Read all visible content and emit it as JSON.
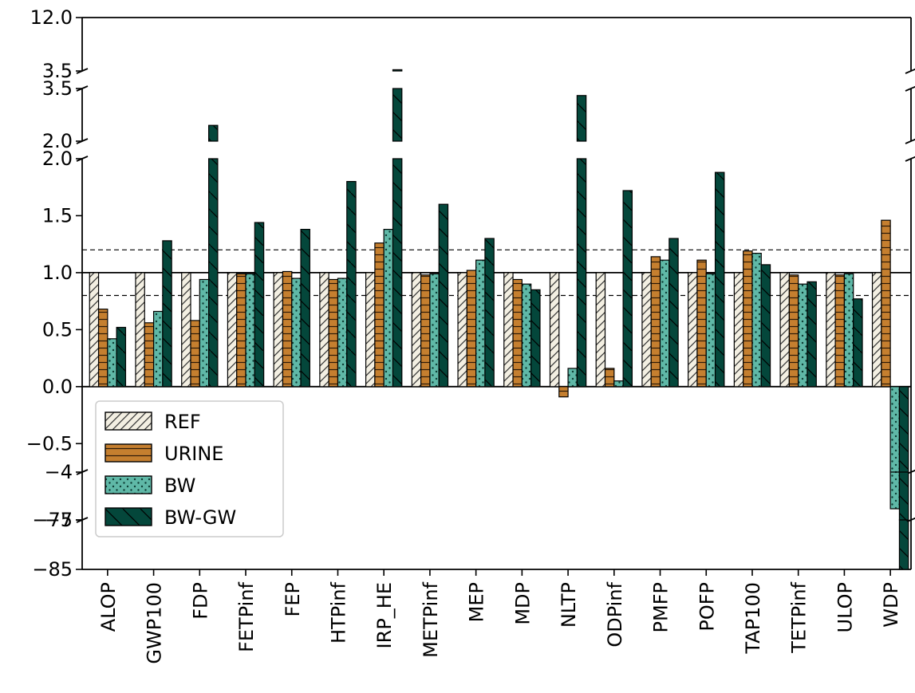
{
  "chart_data": {
    "type": "bar",
    "title": "",
    "xlabel": "",
    "ylabel": "",
    "broken_y_axis": true,
    "y_segments": [
      {
        "range": [
          3.5,
          12.0
        ],
        "ticks": [
          "12.0",
          "3.5"
        ]
      },
      {
        "range": [
          2.0,
          3.5
        ],
        "ticks": [
          "3.5",
          "2.0"
        ]
      },
      {
        "range": [
          -0.75,
          2.0
        ],
        "ticks": [
          "2.0",
          "1.5",
          "1.0",
          "0.5",
          "0.0",
          "−0.5"
        ]
      },
      {
        "range": [
          -7,
          -4
        ],
        "ticks": [
          "−4",
          "−7"
        ]
      },
      {
        "range": [
          -85,
          -75
        ],
        "ticks": [
          "−75",
          "−85"
        ]
      }
    ],
    "reference_lines": [
      {
        "y": 1.0,
        "style": "solid"
      },
      {
        "y": 1.2,
        "style": "dashed"
      },
      {
        "y": 0.8,
        "style": "dashed"
      }
    ],
    "categories": [
      "ALOP",
      "GWP100",
      "FDP",
      "FETPinf",
      "FEP",
      "HTPinf",
      "IRP_HE",
      "METPinf",
      "MEP",
      "MDP",
      "NLTP",
      "ODPinf",
      "PMFP",
      "POFP",
      "TAP100",
      "TETPinf",
      "ULOP",
      "WDP"
    ],
    "series": [
      {
        "name": "REF",
        "color": "#f3efe2",
        "pattern": "diagonal-hatch",
        "values": [
          1,
          1,
          1,
          1,
          1,
          1,
          1,
          1,
          1,
          1,
          1,
          1,
          1,
          1,
          1,
          1,
          1,
          1
        ]
      },
      {
        "name": "URINE",
        "color": "#c57f2f",
        "pattern": "horizontal-hatch",
        "values": [
          0.68,
          0.56,
          0.58,
          0.99,
          1.01,
          0.94,
          1.26,
          0.98,
          1.02,
          0.94,
          -0.09,
          0.16,
          1.14,
          1.11,
          1.19,
          0.98,
          0.98,
          1.46
        ]
      },
      {
        "name": "BW",
        "color": "#5fb8a7",
        "pattern": "dots",
        "values": [
          0.42,
          0.66,
          0.94,
          0.99,
          0.95,
          0.95,
          1.38,
          0.99,
          1.11,
          0.9,
          0.16,
          0.05,
          1.11,
          0.99,
          1.17,
          0.9,
          0.99,
          -6.3
        ]
      },
      {
        "name": "BW-GW",
        "color": "#04473b",
        "pattern": "sparse-diagonal",
        "values": [
          0.52,
          1.28,
          2.45,
          1.44,
          1.38,
          1.8,
          3.7,
          1.6,
          1.3,
          0.85,
          3.3,
          1.72,
          1.3,
          1.88,
          1.07,
          0.92,
          0.77,
          -85
        ]
      }
    ],
    "legend": {
      "placement": "lower-left",
      "entries": [
        "REF",
        "URINE",
        "BW",
        "BW-GW"
      ]
    }
  }
}
